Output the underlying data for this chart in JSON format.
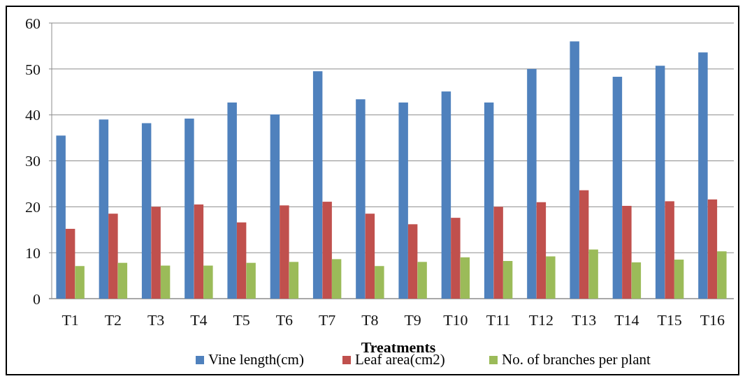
{
  "chart_data": {
    "type": "bar",
    "xlabel": "Treatments",
    "categories": [
      "T1",
      "T2",
      "T3",
      "T4",
      "T5",
      "T6",
      "T7",
      "T8",
      "T9",
      "T10",
      "T11",
      "T12",
      "T13",
      "T14",
      "T15",
      "T16"
    ],
    "series": [
      {
        "name": "Vine length(cm)",
        "color": "#4f81bd",
        "values": [
          35.5,
          39,
          38.2,
          39.2,
          42.7,
          40.1,
          49.5,
          43.4,
          42.7,
          45.1,
          42.7,
          50,
          56,
          48.3,
          50.7,
          53.6
        ]
      },
      {
        "name": "Leaf area(cm2)",
        "color": "#c0504d",
        "values": [
          15.2,
          18.5,
          20,
          20.5,
          16.6,
          20.3,
          21.1,
          18.5,
          16.2,
          17.6,
          20,
          21,
          23.6,
          20.2,
          21.2,
          21.6
        ]
      },
      {
        "name": "No. of branches per plant",
        "color": "#9bbb59",
        "values": [
          7.1,
          7.8,
          7.2,
          7.2,
          7.8,
          8,
          8.6,
          7.1,
          8,
          9,
          8.2,
          9.2,
          10.7,
          7.9,
          8.5,
          10.3
        ]
      }
    ],
    "ylim": [
      0,
      60
    ],
    "yticks": [
      0,
      10,
      20,
      30,
      40,
      50,
      60
    ],
    "grid": "y",
    "legend": "bottom"
  }
}
